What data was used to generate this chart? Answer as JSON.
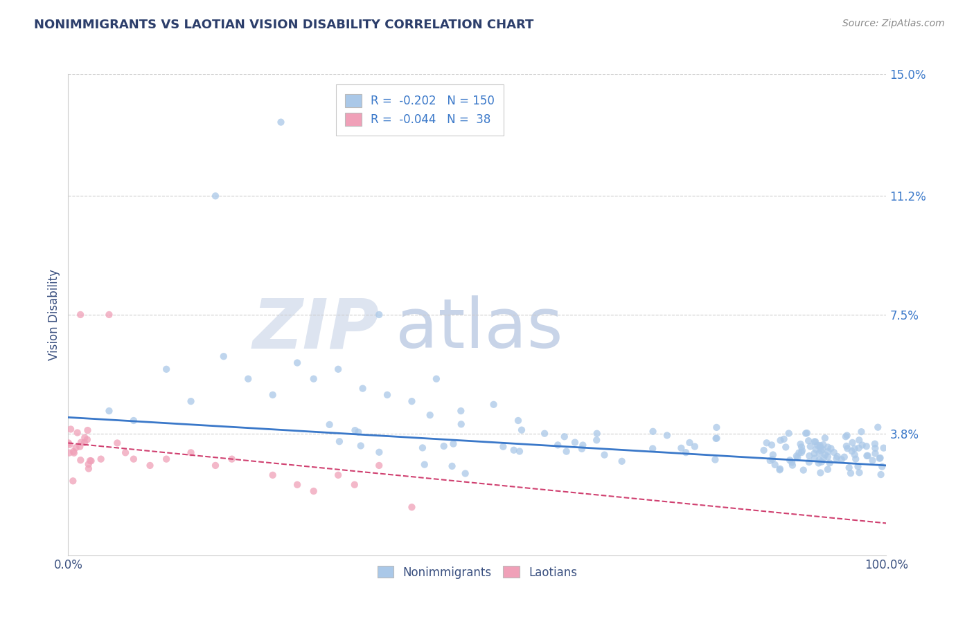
{
  "title": "NONIMMIGRANTS VS LAOTIAN VISION DISABILITY CORRELATION CHART",
  "source_text": "Source: ZipAtlas.com",
  "ylabel": "Vision Disability",
  "legend_label1": "Nonimmigrants",
  "legend_label2": "Laotians",
  "R1": "-0.202",
  "N1": "150",
  "R2": "-0.044",
  "N2": "38",
  "xmin": 0.0,
  "xmax": 100.0,
  "ymin": 0.0,
  "ymax": 15.0,
  "ytick_vals": [
    3.8,
    7.5,
    11.2,
    15.0
  ],
  "ytick_labels": [
    "3.8%",
    "7.5%",
    "11.2%",
    "15.0%"
  ],
  "grid_color": "#cccccc",
  "title_color": "#2c3e6b",
  "axis_color": "#3a5080",
  "blue_scatter_color": "#aac8e8",
  "pink_scatter_color": "#f0a0b8",
  "blue_line_color": "#3a78c9",
  "pink_line_color": "#d04070",
  "watermark_zip_color": "#dde4f0",
  "watermark_atlas_color": "#c8d4e8"
}
